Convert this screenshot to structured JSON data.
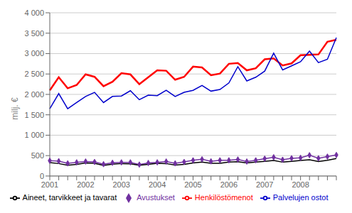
{
  "chart_data": {
    "type": "line",
    "ylabel": "milj. €",
    "categories": [
      "2001",
      null,
      null,
      null,
      "2002",
      null,
      null,
      null,
      "2003",
      null,
      null,
      null,
      "2004",
      null,
      null,
      null,
      "2005",
      null,
      null,
      null,
      "2006",
      null,
      null,
      null,
      "2007",
      null,
      null,
      null,
      "2008",
      null,
      null,
      null,
      null
    ],
    "ylim": [
      0,
      4000
    ],
    "yticks": [
      0,
      500,
      {
        "value": 1000,
        "label": "1 000"
      },
      {
        "value": 1500,
        "label": "1 500"
      },
      {
        "value": 2000,
        "label": "2 000"
      },
      {
        "value": 2500,
        "label": "2 500"
      },
      {
        "value": 3000,
        "label": "3 000"
      },
      {
        "value": 3500,
        "label": "3 500"
      },
      {
        "value": 4000,
        "label": "4 000"
      }
    ],
    "grid": "y",
    "legend": "bottom",
    "series": [
      {
        "name": "Henkilöstömenot",
        "color": "#ff0000",
        "marker": "none",
        "values": [
          2100,
          2420,
          2150,
          2230,
          2490,
          2430,
          2200,
          2310,
          2520,
          2490,
          2250,
          2420,
          2590,
          2580,
          2360,
          2430,
          2680,
          2660,
          2470,
          2510,
          2750,
          2770,
          2590,
          2640,
          2860,
          2880,
          2710,
          2760,
          2960,
          2970,
          2980,
          3290,
          3340
        ]
      },
      {
        "name": "Palvelujen ostot",
        "color": "#0000cc",
        "marker": "none",
        "values": [
          1650,
          2020,
          1650,
          1800,
          1950,
          2050,
          1800,
          1950,
          1960,
          2090,
          1870,
          1980,
          1970,
          2100,
          1950,
          2050,
          2100,
          2220,
          2080,
          2120,
          2280,
          2680,
          2330,
          2420,
          2570,
          3010,
          2600,
          2700,
          2800,
          3060,
          2780,
          2860,
          3390
        ]
      },
      {
        "name": "Avustukset",
        "color": "#7030a0",
        "marker": "diamond",
        "values": [
          375,
          365,
          310,
          335,
          355,
          345,
          290,
          325,
          335,
          335,
          280,
          320,
          335,
          355,
          310,
          345,
          385,
          410,
          360,
          385,
          385,
          405,
          355,
          385,
          425,
          460,
          400,
          435,
          445,
          510,
          435,
          475,
          515
        ]
      },
      {
        "name": "Aineet, tarvikkeet ja tavarat",
        "color": "#000000",
        "marker": "none",
        "values": [
          330,
          305,
          265,
          285,
          320,
          310,
          260,
          290,
          305,
          300,
          265,
          285,
          310,
          305,
          270,
          285,
          320,
          340,
          310,
          310,
          340,
          350,
          320,
          340,
          360,
          380,
          340,
          360,
          380,
          400,
          355,
          385,
          430
        ]
      }
    ]
  }
}
